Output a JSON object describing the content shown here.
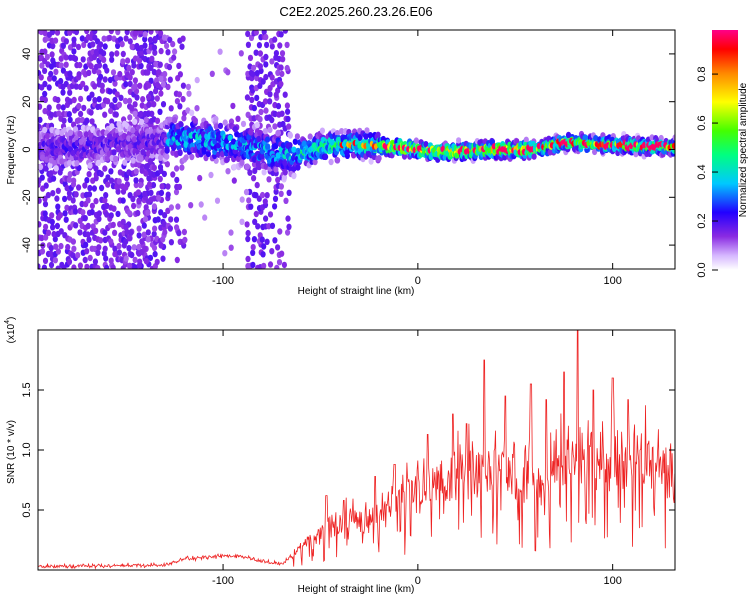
{
  "title": "C2E2.2025.260.23.26.E06",
  "colors": {
    "snr_line": "#ee2222",
    "axis": "#000000"
  },
  "chart_data": [
    {
      "type": "heatmap",
      "name": "spectrogram",
      "xlabel": "Height of straight line (km)",
      "ylabel": "Frequency (Hz)",
      "xlim": [
        -195,
        132
      ],
      "ylim": [
        -50,
        50
      ],
      "xticks": [
        "-100",
        "0",
        "100"
      ],
      "xtick_values": [
        -100,
        0,
        100
      ],
      "yticks": [
        "-40",
        "-20",
        "0",
        "20",
        "40"
      ],
      "ytick_values": [
        -40,
        -20,
        0,
        20,
        40
      ],
      "ridge_center_hz": [
        [
          -195,
          0
        ],
        [
          -140,
          3
        ],
        [
          -120,
          5
        ],
        [
          -100,
          3
        ],
        [
          -75,
          -1
        ],
        [
          -66,
          -3
        ],
        [
          -50,
          1
        ],
        [
          -30,
          2
        ],
        [
          -10,
          1
        ],
        [
          10,
          -1
        ],
        [
          40,
          0
        ],
        [
          60,
          0
        ],
        [
          75,
          3
        ],
        [
          100,
          2
        ],
        [
          132,
          1
        ]
      ],
      "colorbar": {
        "label": "Normalized spectral amplitude",
        "ticks": [
          "0.0",
          "0.2",
          "0.4",
          "0.6",
          "0.8"
        ],
        "tick_values": [
          0.0,
          0.2,
          0.4,
          0.6,
          0.8
        ],
        "range": [
          0,
          0.98
        ]
      }
    },
    {
      "type": "line",
      "name": "snr",
      "xlabel": "Height of straight line (km)",
      "ylabel": "SNR (10 * v/v)",
      "exponent_label": "(x10",
      "exponent": "4",
      "xlim": [
        -195,
        132
      ],
      "ylim": [
        0,
        2.0
      ],
      "xticks": [
        "-100",
        "0",
        "100"
      ],
      "xtick_values": [
        -100,
        0,
        100
      ],
      "yticks": [
        "0.5",
        "1.0",
        "1.5"
      ],
      "ytick_values": [
        0.5,
        1.0,
        1.5
      ],
      "envelope": [
        [
          -195,
          0.03
        ],
        [
          -130,
          0.04
        ],
        [
          -120,
          0.09
        ],
        [
          -100,
          0.12
        ],
        [
          -90,
          0.11
        ],
        [
          -80,
          0.07
        ],
        [
          -70,
          0.05
        ],
        [
          -60,
          0.18
        ],
        [
          -50,
          0.35
        ],
        [
          -40,
          0.4
        ],
        [
          -30,
          0.42
        ],
        [
          -20,
          0.48
        ],
        [
          -10,
          0.6
        ],
        [
          0,
          0.7
        ],
        [
          10,
          0.72
        ],
        [
          20,
          0.8
        ],
        [
          30,
          0.85
        ],
        [
          40,
          0.9
        ],
        [
          50,
          0.8
        ],
        [
          60,
          0.75
        ],
        [
          70,
          0.85
        ],
        [
          80,
          0.95
        ],
        [
          90,
          0.9
        ],
        [
          100,
          0.92
        ],
        [
          110,
          0.95
        ],
        [
          120,
          0.9
        ],
        [
          132,
          0.88
        ]
      ],
      "peaks": [
        [
          -47,
          0.62
        ],
        [
          -38,
          0.58
        ],
        [
          -22,
          0.78
        ],
        [
          -12,
          0.88
        ],
        [
          5,
          1.13
        ],
        [
          18,
          1.3
        ],
        [
          25,
          1.22
        ],
        [
          34,
          1.75
        ],
        [
          45,
          1.45
        ],
        [
          58,
          1.55
        ],
        [
          66,
          1.42
        ],
        [
          75,
          1.65
        ],
        [
          82,
          2.0
        ],
        [
          90,
          1.5
        ],
        [
          100,
          1.6
        ],
        [
          108,
          1.42
        ],
        [
          118,
          1.05
        ]
      ]
    }
  ]
}
